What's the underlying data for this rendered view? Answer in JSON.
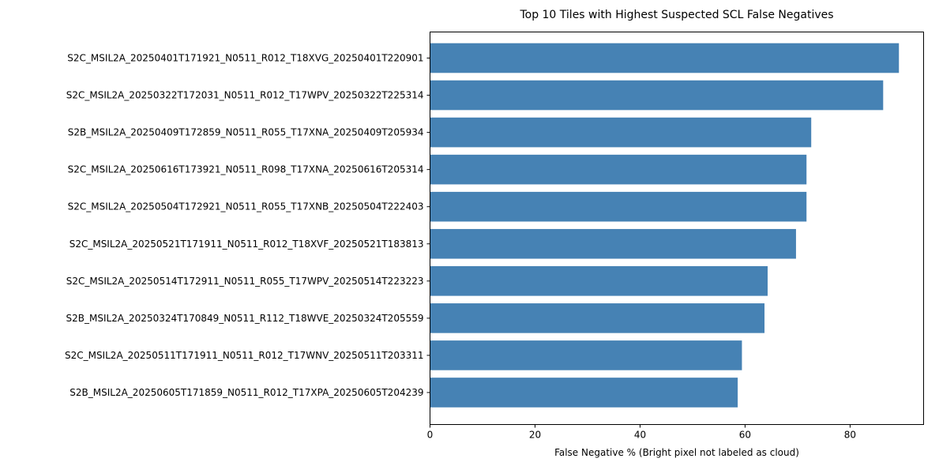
{
  "chart_data": {
    "type": "bar",
    "orientation": "horizontal",
    "title": "Top 10 Tiles with Highest Suspected SCL False Negatives",
    "xlabel": "False Negative % (Bright pixel not labeled as cloud)",
    "ylabel": "",
    "xlim": [
      0,
      94
    ],
    "xticks": [
      0,
      20,
      40,
      60,
      80
    ],
    "grid": false,
    "categories": [
      "S2C_MSIL2A_20250401T171921_N0511_R012_T18XVG_20250401T220901",
      "S2C_MSIL2A_20250322T172031_N0511_R012_T17WPV_20250322T225314",
      "S2B_MSIL2A_20250409T172859_N0511_R055_T17XNA_20250409T205934",
      "S2C_MSIL2A_20250616T173921_N0511_R098_T17XNA_20250616T205314",
      "S2C_MSIL2A_20250504T172921_N0511_R055_T17XNB_20250504T222403",
      "S2C_MSIL2A_20250521T171911_N0511_R012_T18XVF_20250521T183813",
      "S2C_MSIL2A_20250514T172911_N0511_R055_T17WPV_20250514T223223",
      "S2B_MSIL2A_20250324T170849_N0511_R112_T18WVE_20250324T205559",
      "S2C_MSIL2A_20250511T171911_N0511_R012_T17WNV_20250511T203311",
      "S2B_MSIL2A_20250605T171859_N0511_R012_T17XPA_20250605T204239"
    ],
    "values": [
      89.3,
      86.3,
      72.6,
      71.7,
      71.7,
      69.7,
      64.3,
      63.7,
      59.4,
      58.6
    ],
    "bar_color": "#4682b4"
  }
}
